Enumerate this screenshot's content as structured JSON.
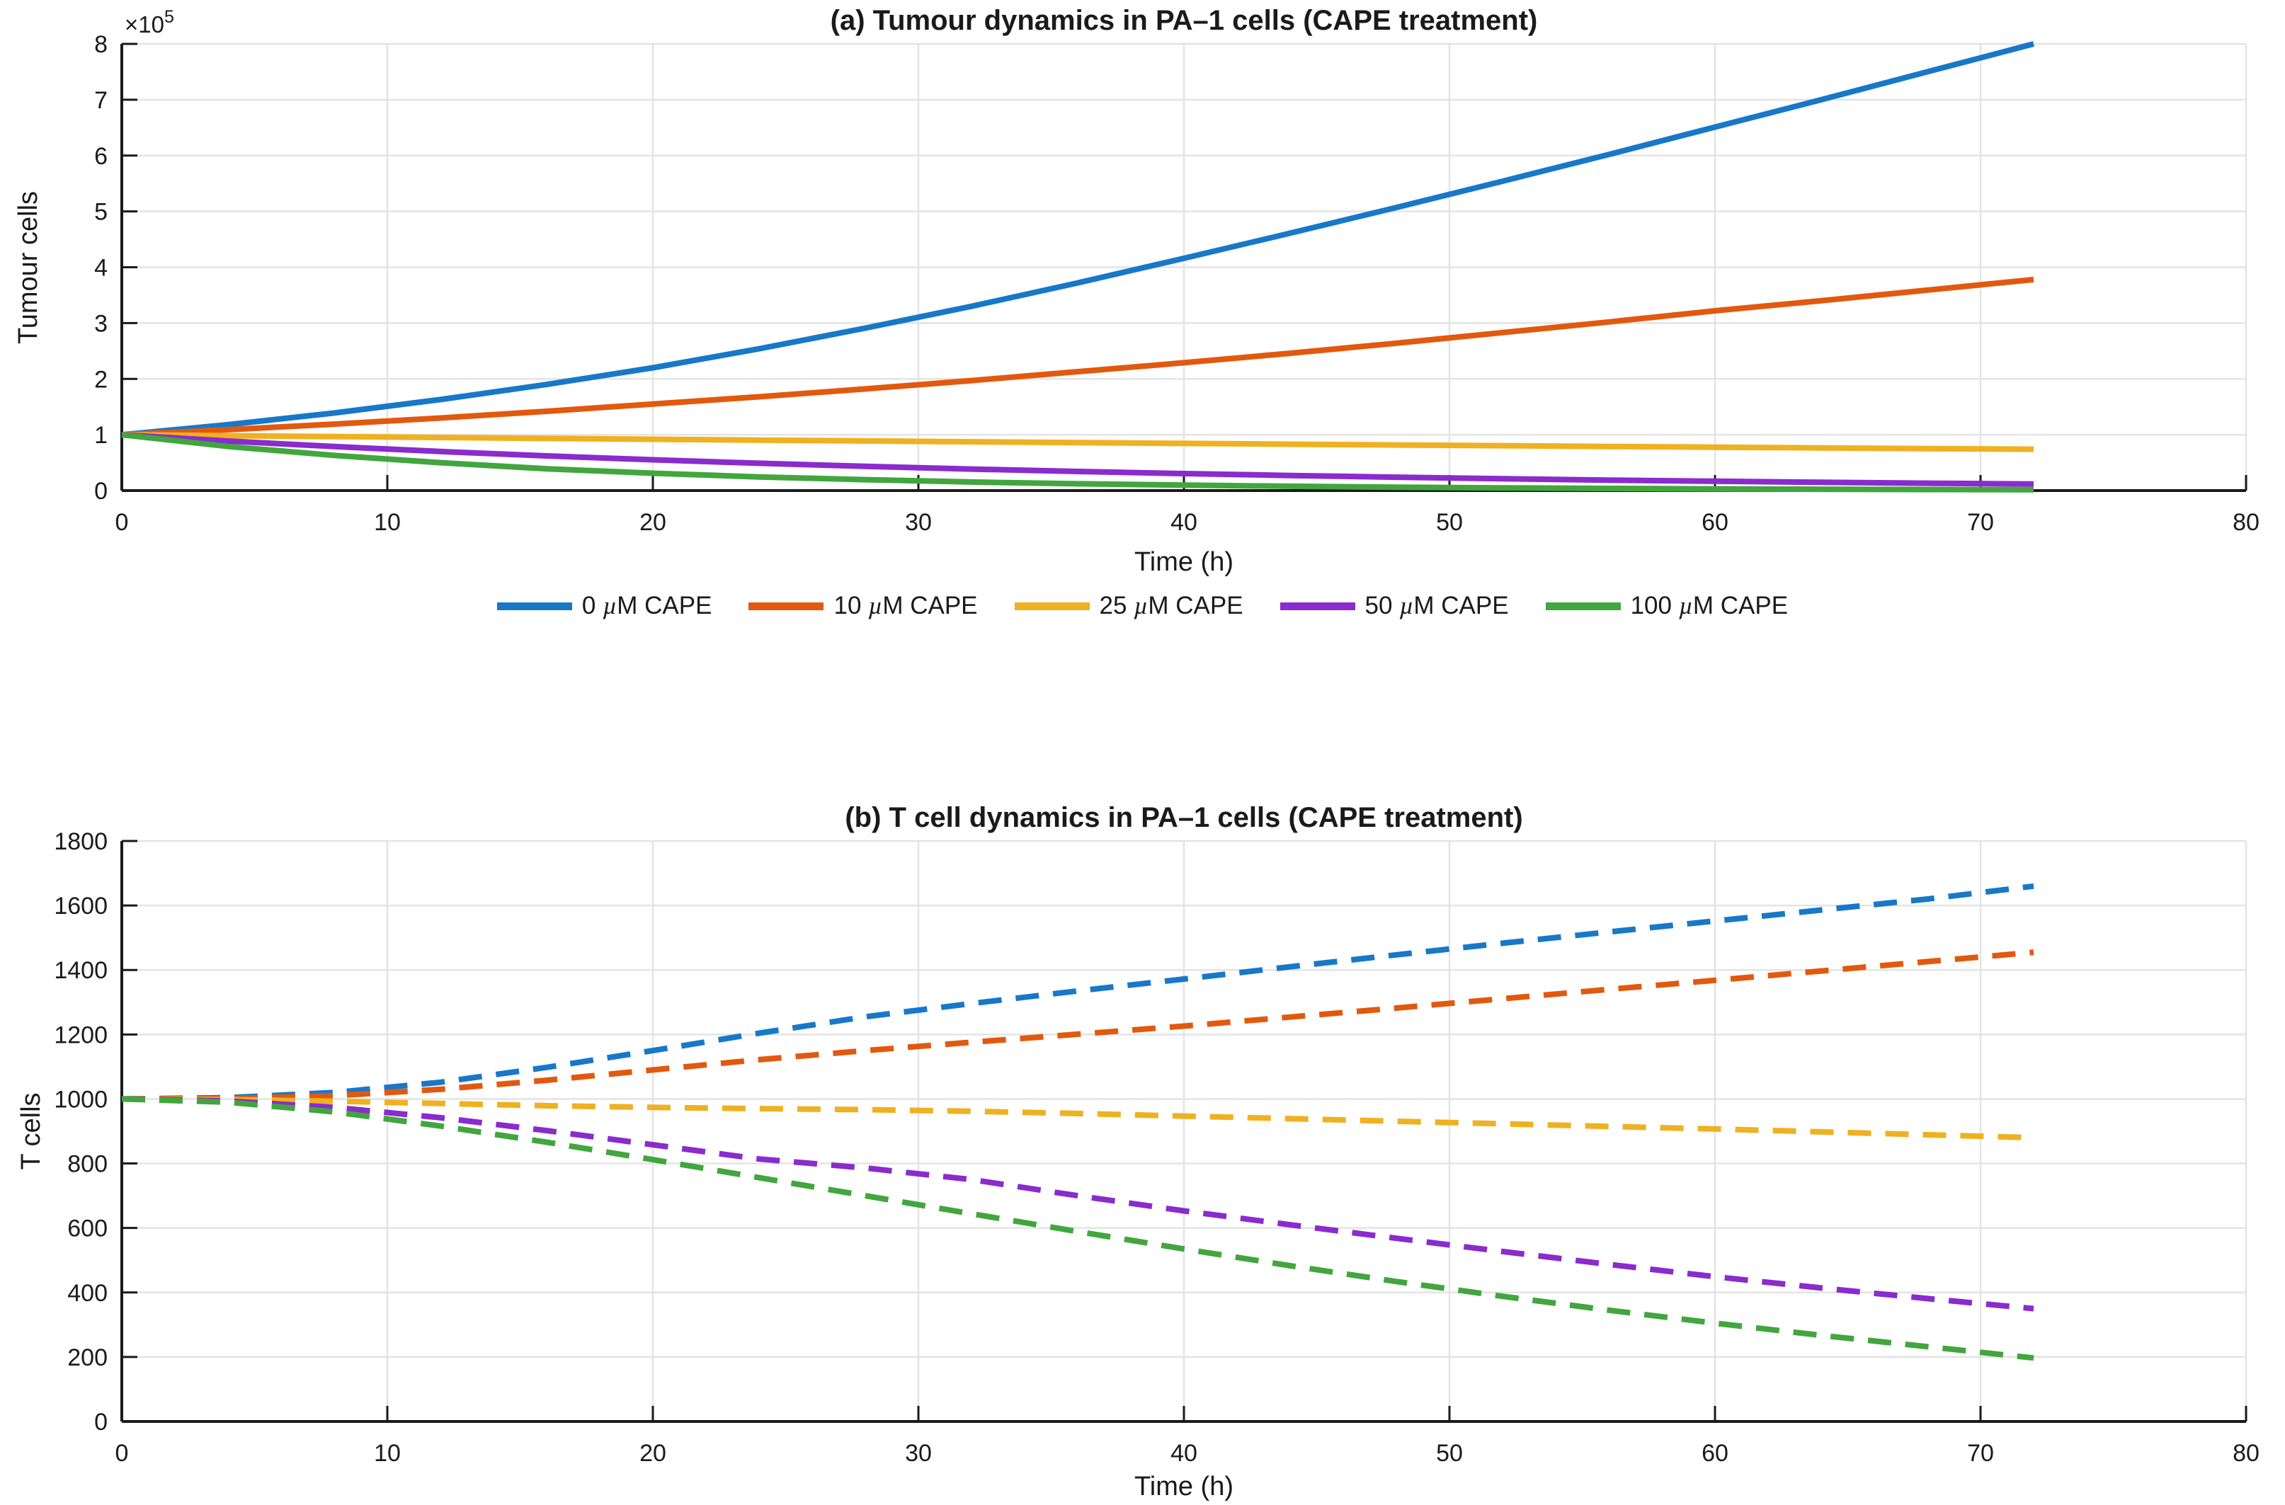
{
  "figure": {
    "background": "#ffffff",
    "grid_color": "#e4e4e4",
    "axis_color": "#1a1a1a"
  },
  "legend": {
    "items": [
      {
        "label": "0 µM CAPE",
        "color": "#1878C8"
      },
      {
        "label": "10 µM CAPE",
        "color": "#E2590E"
      },
      {
        "label": "25 µM CAPE",
        "color": "#EFB121"
      },
      {
        "label": "50 µM CAPE",
        "color": "#8A2BCE"
      },
      {
        "label": "100 µM CAPE",
        "color": "#41A63E"
      }
    ]
  },
  "chart_data": [
    {
      "type": "line",
      "title": "(a) Tumour dynamics in PA–1 cells (CAPE treatment)",
      "xlabel": "Time (h)",
      "ylabel": "Tumour cells",
      "y_multiplier_base": "×10",
      "y_multiplier_exp": "5",
      "xlim": [
        0,
        80
      ],
      "ylim": [
        0,
        800000
      ],
      "grid": true,
      "legend_position": "below",
      "x_ticks": {
        "values": [
          0,
          10,
          20,
          30,
          40,
          50,
          60,
          70,
          80
        ],
        "labels": [
          "0",
          "10",
          "20",
          "30",
          "40",
          "50",
          "60",
          "70",
          "80"
        ]
      },
      "y_ticks": {
        "values": [
          0,
          100000,
          200000,
          300000,
          400000,
          500000,
          600000,
          700000,
          800000
        ],
        "labels": [
          "0",
          "1",
          "2",
          "3",
          "4",
          "5",
          "6",
          "7",
          "8"
        ]
      },
      "x": [
        0,
        4,
        8,
        12,
        16,
        20,
        24,
        28,
        32,
        36,
        40,
        44,
        48,
        52,
        56,
        60,
        64,
        68,
        72
      ],
      "series": [
        {
          "name": "0 µM CAPE",
          "color": "#1878C8",
          "style": "solid",
          "values": [
            100000,
            118000,
            139000,
            163000,
            190000,
            220000,
            254000,
            291000,
            330000,
            372000,
            416000,
            461000,
            507000,
            554000,
            602000,
            651000,
            700000,
            750000,
            800000
          ]
        },
        {
          "name": "10 µM CAPE",
          "color": "#E2590E",
          "style": "solid",
          "values": [
            100000,
            109000,
            119000,
            130000,
            142000,
            155000,
            168000,
            182000,
            197000,
            213000,
            229000,
            246000,
            264000,
            283000,
            302000,
            322000,
            340000,
            359000,
            378000
          ]
        },
        {
          "name": "25 µM CAPE",
          "color": "#EFB121",
          "style": "solid",
          "values": [
            100000,
            98300,
            96700,
            95100,
            93500,
            91900,
            90400,
            88900,
            87400,
            86000,
            84500,
            83100,
            81700,
            80400,
            79000,
            77700,
            76400,
            75200,
            74000
          ]
        },
        {
          "name": "50 µM CAPE",
          "color": "#8A2BCE",
          "style": "solid",
          "values": [
            100000,
            88800,
            78800,
            70000,
            62100,
            55100,
            48900,
            43400,
            38500,
            34200,
            30400,
            27000,
            23900,
            21200,
            18800,
            16700,
            14800,
            13200,
            11700
          ]
        },
        {
          "name": "100 µM CAPE",
          "color": "#41A63E",
          "style": "solid",
          "values": [
            100000,
            79000,
            63000,
            50000,
            39000,
            31000,
            24500,
            19500,
            15400,
            12200,
            9700,
            7700,
            6100,
            4800,
            3800,
            3000,
            2400,
            1900,
            1500
          ]
        }
      ]
    },
    {
      "type": "line",
      "title": "(b) T cell dynamics in PA–1 cells (CAPE treatment)",
      "xlabel": "Time (h)",
      "ylabel": "T cells",
      "xlim": [
        0,
        80
      ],
      "ylim": [
        0,
        1800
      ],
      "grid": true,
      "legend_position": "none",
      "x_ticks": {
        "values": [
          0,
          10,
          20,
          30,
          40,
          50,
          60,
          70,
          80
        ],
        "labels": [
          "0",
          "10",
          "20",
          "30",
          "40",
          "50",
          "60",
          "70",
          "80"
        ]
      },
      "y_ticks": {
        "values": [
          0,
          200,
          400,
          600,
          800,
          1000,
          1200,
          1400,
          1600,
          1800
        ],
        "labels": [
          "0",
          "200",
          "400",
          "600",
          "800",
          "1000",
          "1200",
          "1400",
          "1600",
          "1800"
        ]
      },
      "x": [
        0,
        4,
        8,
        12,
        16,
        20,
        24,
        28,
        32,
        36,
        40,
        44,
        48,
        52,
        56,
        60,
        64,
        68,
        72
      ],
      "series": [
        {
          "name": "0 µM CAPE",
          "color": "#1878C8",
          "style": "dashed",
          "values": [
            1000,
            1004,
            1020,
            1052,
            1098,
            1150,
            1204,
            1255,
            1296,
            1335,
            1372,
            1410,
            1447,
            1483,
            1518,
            1552,
            1586,
            1620,
            1660
          ]
        },
        {
          "name": "10 µM CAPE",
          "color": "#E2590E",
          "style": "dashed",
          "values": [
            1000,
            1001,
            1010,
            1030,
            1058,
            1090,
            1122,
            1150,
            1176,
            1201,
            1226,
            1254,
            1282,
            1311,
            1340,
            1368,
            1397,
            1426,
            1455
          ]
        },
        {
          "name": "25 µM CAPE",
          "color": "#EFB121",
          "style": "dashed",
          "values": [
            1000,
            998,
            993,
            986,
            979,
            974,
            970,
            967,
            962,
            955,
            947,
            939,
            931,
            923,
            915,
            907,
            898,
            889,
            880
          ]
        },
        {
          "name": "50 µM CAPE",
          "color": "#8A2BCE",
          "style": "dashed",
          "values": [
            1000,
            994,
            974,
            942,
            902,
            858,
            814,
            786,
            750,
            700,
            653,
            610,
            568,
            527,
            487,
            449,
            414,
            381,
            350
          ]
        },
        {
          "name": "100 µM CAPE",
          "color": "#41A63E",
          "style": "dashed",
          "values": [
            1000,
            990,
            960,
            916,
            866,
            812,
            756,
            700,
            644,
            589,
            535,
            483,
            434,
            388,
            345,
            305,
            267,
            232,
            197
          ]
        }
      ]
    }
  ]
}
